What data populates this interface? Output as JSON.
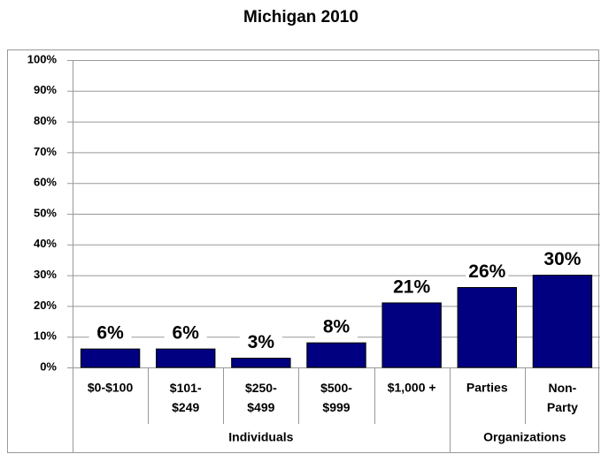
{
  "chart_data": {
    "type": "bar",
    "title": "Michigan 2010",
    "categories": [
      "$0-$100",
      "$101-\n$249",
      "$250-\n$499",
      "$500-\n$999",
      "$1,000 +",
      "Parties",
      "Non-\nParty"
    ],
    "values": [
      6,
      6,
      3,
      8,
      21,
      26,
      30
    ],
    "value_labels": [
      "6%",
      "6%",
      "3%",
      "8%",
      "21%",
      "26%",
      "30%"
    ],
    "groups": [
      "Individuals",
      "Organizations"
    ],
    "color": "#000080",
    "ylim": [
      0,
      100
    ],
    "yticks": [
      {
        "value": 0,
        "label": "0%"
      },
      {
        "value": 10,
        "label": "10%"
      },
      {
        "value": 20,
        "label": "20%"
      },
      {
        "value": 30,
        "label": "30%"
      },
      {
        "value": 40,
        "label": "40%"
      },
      {
        "value": 50,
        "label": "50%"
      },
      {
        "value": 60,
        "label": "60%"
      },
      {
        "value": 70,
        "label": "70%"
      },
      {
        "value": 80,
        "label": "80%"
      },
      {
        "value": 90,
        "label": "90%"
      },
      {
        "value": 100,
        "label": "100%"
      }
    ],
    "grid": true
  }
}
